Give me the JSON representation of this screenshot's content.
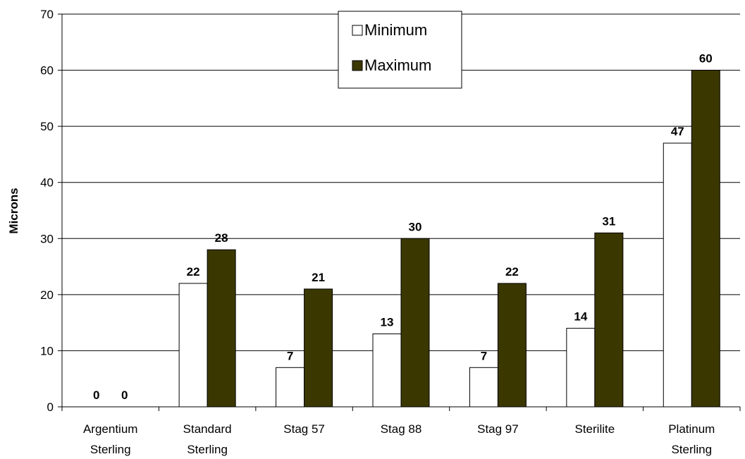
{
  "chart_data": {
    "type": "bar",
    "title": "",
    "xlabel": "",
    "ylabel": "Microns",
    "ylim": [
      0,
      70
    ],
    "yticks": [
      0,
      10,
      20,
      30,
      40,
      50,
      60,
      70
    ],
    "grid": true,
    "legend": "top-center",
    "categories": [
      [
        "Argentium",
        "Sterling"
      ],
      [
        "Standard",
        "Sterling"
      ],
      [
        "Stag 57"
      ],
      [
        "Stag 88"
      ],
      [
        "Stag 97"
      ],
      [
        "Sterilite"
      ],
      [
        "Platinum",
        "Sterling"
      ]
    ],
    "series": [
      {
        "name": "Minimum",
        "values": [
          0,
          22,
          7,
          13,
          7,
          14,
          47
        ],
        "color": "#ffffff"
      },
      {
        "name": "Maximum",
        "values": [
          0,
          28,
          21,
          30,
          22,
          31,
          60
        ],
        "color": "#3b3700"
      }
    ]
  }
}
